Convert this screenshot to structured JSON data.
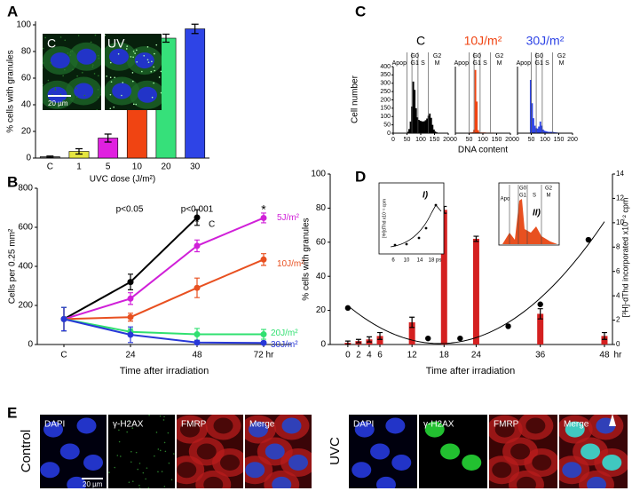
{
  "chart_data": [
    {
      "panel": "A",
      "type": "bar",
      "ylabel": "% cells with granules",
      "xlabel": "UVC dose (J/m²)",
      "categories": [
        "C",
        "1",
        "5",
        "10",
        "20",
        "30"
      ],
      "values": [
        1,
        5,
        15,
        72,
        90,
        97
      ],
      "errors": [
        0.5,
        2,
        3,
        7,
        3,
        3.5
      ],
      "colors": [
        "#606060",
        "#e6e640",
        "#e020e0",
        "#f04412",
        "#36e07a",
        "#2e44e6"
      ],
      "ylim": [
        0,
        100
      ],
      "yticks": [
        0,
        20,
        40,
        60,
        80,
        100
      ],
      "inset_labels": [
        "C",
        "UV"
      ],
      "scale_bar": "20 µm"
    },
    {
      "panel": "B",
      "type": "line",
      "ylabel": "Cells per 0.25 mm²",
      "xlabel": "Time after irradiation",
      "categories": [
        "C",
        "24",
        "48",
        "72 hr"
      ],
      "ylim": [
        0,
        800
      ],
      "yticks": [
        0,
        200,
        400,
        600,
        800
      ],
      "series": [
        {
          "name": "C",
          "color": "#000000",
          "values": [
            130,
            320,
            650,
            null
          ],
          "errors": [
            60,
            40,
            40,
            null
          ]
        },
        {
          "name": "5J/m²",
          "color": "#d020d8",
          "values": [
            130,
            235,
            505,
            648
          ],
          "errors": [
            60,
            30,
            30,
            25
          ]
        },
        {
          "name": "10J/m²",
          "color": "#e85020",
          "values": [
            130,
            140,
            290,
            435
          ],
          "errors": [
            60,
            20,
            50,
            30
          ]
        },
        {
          "name": "20J/m²",
          "color": "#30e070",
          "values": [
            130,
            65,
            52,
            52
          ],
          "errors": [
            60,
            15,
            30,
            25
          ]
        },
        {
          "name": "30J/m²",
          "color": "#2838d8",
          "values": [
            130,
            50,
            10,
            8
          ],
          "errors": [
            60,
            40,
            10,
            8
          ]
        }
      ],
      "annotations": [
        "p<0.05",
        "p<0.001",
        "*",
        "*"
      ]
    },
    {
      "panel": "C",
      "type": "histogram",
      "title": "C",
      "title_color": "#000000",
      "color": "#000000",
      "ylabel": "Cell number",
      "bins": [
        0,
        5,
        10,
        15,
        20,
        25,
        30,
        35,
        40,
        45,
        50,
        55,
        60,
        65,
        70,
        75,
        80,
        85,
        90,
        95,
        100,
        105,
        110,
        115,
        120,
        125,
        130,
        135,
        140,
        145,
        150,
        155,
        160,
        165,
        170,
        175,
        180,
        185,
        190,
        195,
        200
      ],
      "counts": [
        0,
        0,
        0,
        0,
        0,
        0,
        0,
        0,
        0,
        0,
        8,
        25,
        70,
        160,
        310,
        260,
        150,
        95,
        80,
        75,
        72,
        70,
        72,
        78,
        88,
        105,
        118,
        92,
        50,
        22,
        10,
        5,
        2,
        0,
        0,
        0,
        0,
        0,
        0,
        0
      ],
      "xlim": [
        0,
        200
      ],
      "xticks": [
        0,
        50,
        100,
        150,
        200
      ],
      "ylim": [
        0,
        400
      ],
      "yticks": [
        0,
        50,
        100,
        150,
        200,
        250,
        300,
        350,
        400
      ],
      "gates": [
        50,
        68,
        90,
        128
      ],
      "phase_labels": [
        "Apop",
        "G0",
        "G1",
        "S",
        "G2",
        "M"
      ]
    },
    {
      "type": "histogram",
      "title": "10J/m²",
      "title_color": "#f04412",
      "color": "#f04412",
      "xlabel": "DNA content",
      "bins": [
        0,
        5,
        10,
        15,
        20,
        25,
        30,
        35,
        40,
        45,
        50,
        55,
        60,
        65,
        70,
        75,
        80,
        85,
        90,
        95,
        100,
        105,
        110,
        115,
        120,
        125,
        130,
        135,
        140,
        145,
        150,
        155,
        160,
        165,
        170,
        175,
        180,
        185,
        190,
        195,
        200
      ],
      "counts": [
        0,
        0,
        0,
        0,
        0,
        0,
        0,
        0,
        0,
        0,
        4,
        4,
        6,
        20,
        380,
        190,
        18,
        6,
        4,
        4,
        4,
        4,
        3,
        3,
        3,
        3,
        3,
        3,
        2,
        2,
        2,
        1,
        1,
        0,
        0,
        0,
        0,
        0,
        0,
        0
      ],
      "xlim": [
        0,
        200
      ],
      "xticks": [
        0,
        50,
        100,
        150,
        200
      ],
      "ylim": [
        0,
        400
      ],
      "gates": [
        50,
        68,
        90,
        128
      ],
      "phase_labels": [
        "Apop",
        "G0",
        "G1",
        "S",
        "G2",
        "M"
      ]
    },
    {
      "type": "histogram",
      "title": "30J/m²",
      "title_color": "#2e44e6",
      "color": "#2e44e6",
      "bins": [
        0,
        5,
        10,
        15,
        20,
        25,
        30,
        35,
        40,
        45,
        50,
        55,
        60,
        65,
        70,
        75,
        80,
        85,
        90,
        95,
        100,
        105,
        110,
        115,
        120,
        125,
        130,
        135,
        140,
        145,
        150,
        155,
        160,
        165,
        170,
        175,
        180,
        185,
        190,
        195,
        200
      ],
      "counts": [
        0,
        0,
        0,
        0,
        0,
        0,
        0,
        0,
        0,
        320,
        180,
        90,
        45,
        30,
        28,
        40,
        70,
        45,
        22,
        15,
        12,
        10,
        8,
        8,
        8,
        8,
        6,
        5,
        4,
        3,
        2,
        2,
        1,
        1,
        0,
        0,
        0,
        0,
        0,
        0
      ],
      "xlim": [
        0,
        200
      ],
      "xticks": [
        0,
        50,
        100,
        150,
        200
      ],
      "ylim": [
        0,
        400
      ],
      "gates": [
        50,
        68,
        90,
        128
      ],
      "phase_labels": [
        "Apop",
        "G0",
        "G1",
        "S",
        "G2",
        "M"
      ]
    },
    {
      "panel": "D",
      "type": "bar",
      "ylabel": "% cells with granules",
      "y2label": "[³H]-dThd incorporated x10⁻² cpm",
      "xlabel": "Time after irradiation",
      "x_unit": "hr",
      "xlim": [
        -3.3,
        49.5
      ],
      "xticks": [
        0,
        2,
        4,
        6,
        12,
        18,
        24,
        36,
        48
      ],
      "ylim": [
        0,
        100
      ],
      "yticks": [
        0,
        20,
        40,
        60,
        80,
        100
      ],
      "y2lim": [
        0,
        14
      ],
      "y2ticks": [
        0,
        2,
        4,
        6,
        8,
        10,
        12,
        14
      ],
      "fit": "quadratic",
      "series": [
        {
          "type": "bar",
          "color": "#d42020",
          "x": [
            0,
            2,
            4,
            6,
            12,
            18,
            24,
            36,
            48
          ],
          "values": [
            1,
            2,
            3,
            5,
            13,
            79,
            62,
            18,
            5
          ],
          "errors": [
            1,
            1,
            1.5,
            2,
            3,
            2,
            1.5,
            3,
            2
          ]
        },
        {
          "type": "scatter",
          "axis": "y2",
          "color": "#000000",
          "x": [
            0,
            15,
            21,
            30,
            36,
            45
          ],
          "values": [
            3,
            0.5,
            0.5,
            1.5,
            3.3,
            8.6
          ]
        }
      ],
      "insets": [
        {
          "label": "I)",
          "ylabel": "[³H]dThd x10⁻² cpm",
          "xticks": [
            "6",
            "10",
            "14",
            "18 ps"
          ]
        },
        {
          "label": "II)",
          "phase_labels": [
            "Apo",
            "G0",
            "G1",
            "S",
            "G2",
            "M"
          ]
        }
      ]
    }
  ],
  "panel_e": {
    "letter": "E",
    "rows": [
      "Control",
      "UVC"
    ],
    "columns": [
      "DAPI",
      "γ-H2AX",
      "FMRP",
      "Merge"
    ],
    "scale_bar": "20 µm"
  }
}
